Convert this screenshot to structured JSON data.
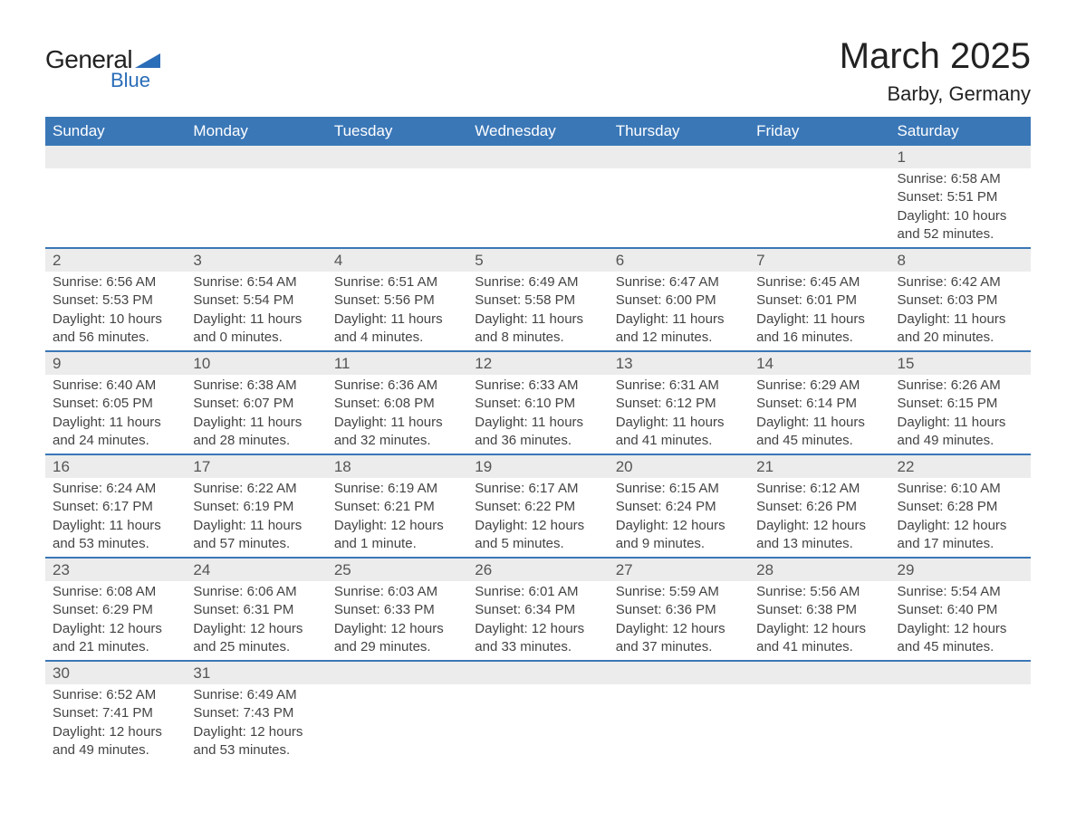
{
  "brand": {
    "name1": "General",
    "name2": "Blue",
    "triangle_color": "#2a6db8"
  },
  "title": "March 2025",
  "location": "Barby, Germany",
  "colors": {
    "header_bg": "#3a77b7",
    "header_text": "#ffffff",
    "daynum_bg": "#ececec",
    "row_divider": "#3a77b7",
    "body_text": "#444444",
    "page_bg": "#ffffff"
  },
  "typography": {
    "title_fontsize": 40,
    "location_fontsize": 22,
    "header_fontsize": 17,
    "daynum_fontsize": 17,
    "detail_fontsize": 15,
    "font_family": "Arial"
  },
  "layout": {
    "columns": 7,
    "weeks": 6,
    "start_day_index": 6
  },
  "days_of_week": [
    "Sunday",
    "Monday",
    "Tuesday",
    "Wednesday",
    "Thursday",
    "Friday",
    "Saturday"
  ],
  "weeks": [
    [
      null,
      null,
      null,
      null,
      null,
      null,
      {
        "n": "1",
        "sr": "Sunrise: 6:58 AM",
        "ss": "Sunset: 5:51 PM",
        "dl": "Daylight: 10 hours and 52 minutes."
      }
    ],
    [
      {
        "n": "2",
        "sr": "Sunrise: 6:56 AM",
        "ss": "Sunset: 5:53 PM",
        "dl": "Daylight: 10 hours and 56 minutes."
      },
      {
        "n": "3",
        "sr": "Sunrise: 6:54 AM",
        "ss": "Sunset: 5:54 PM",
        "dl": "Daylight: 11 hours and 0 minutes."
      },
      {
        "n": "4",
        "sr": "Sunrise: 6:51 AM",
        "ss": "Sunset: 5:56 PM",
        "dl": "Daylight: 11 hours and 4 minutes."
      },
      {
        "n": "5",
        "sr": "Sunrise: 6:49 AM",
        "ss": "Sunset: 5:58 PM",
        "dl": "Daylight: 11 hours and 8 minutes."
      },
      {
        "n": "6",
        "sr": "Sunrise: 6:47 AM",
        "ss": "Sunset: 6:00 PM",
        "dl": "Daylight: 11 hours and 12 minutes."
      },
      {
        "n": "7",
        "sr": "Sunrise: 6:45 AM",
        "ss": "Sunset: 6:01 PM",
        "dl": "Daylight: 11 hours and 16 minutes."
      },
      {
        "n": "8",
        "sr": "Sunrise: 6:42 AM",
        "ss": "Sunset: 6:03 PM",
        "dl": "Daylight: 11 hours and 20 minutes."
      }
    ],
    [
      {
        "n": "9",
        "sr": "Sunrise: 6:40 AM",
        "ss": "Sunset: 6:05 PM",
        "dl": "Daylight: 11 hours and 24 minutes."
      },
      {
        "n": "10",
        "sr": "Sunrise: 6:38 AM",
        "ss": "Sunset: 6:07 PM",
        "dl": "Daylight: 11 hours and 28 minutes."
      },
      {
        "n": "11",
        "sr": "Sunrise: 6:36 AM",
        "ss": "Sunset: 6:08 PM",
        "dl": "Daylight: 11 hours and 32 minutes."
      },
      {
        "n": "12",
        "sr": "Sunrise: 6:33 AM",
        "ss": "Sunset: 6:10 PM",
        "dl": "Daylight: 11 hours and 36 minutes."
      },
      {
        "n": "13",
        "sr": "Sunrise: 6:31 AM",
        "ss": "Sunset: 6:12 PM",
        "dl": "Daylight: 11 hours and 41 minutes."
      },
      {
        "n": "14",
        "sr": "Sunrise: 6:29 AM",
        "ss": "Sunset: 6:14 PM",
        "dl": "Daylight: 11 hours and 45 minutes."
      },
      {
        "n": "15",
        "sr": "Sunrise: 6:26 AM",
        "ss": "Sunset: 6:15 PM",
        "dl": "Daylight: 11 hours and 49 minutes."
      }
    ],
    [
      {
        "n": "16",
        "sr": "Sunrise: 6:24 AM",
        "ss": "Sunset: 6:17 PM",
        "dl": "Daylight: 11 hours and 53 minutes."
      },
      {
        "n": "17",
        "sr": "Sunrise: 6:22 AM",
        "ss": "Sunset: 6:19 PM",
        "dl": "Daylight: 11 hours and 57 minutes."
      },
      {
        "n": "18",
        "sr": "Sunrise: 6:19 AM",
        "ss": "Sunset: 6:21 PM",
        "dl": "Daylight: 12 hours and 1 minute."
      },
      {
        "n": "19",
        "sr": "Sunrise: 6:17 AM",
        "ss": "Sunset: 6:22 PM",
        "dl": "Daylight: 12 hours and 5 minutes."
      },
      {
        "n": "20",
        "sr": "Sunrise: 6:15 AM",
        "ss": "Sunset: 6:24 PM",
        "dl": "Daylight: 12 hours and 9 minutes."
      },
      {
        "n": "21",
        "sr": "Sunrise: 6:12 AM",
        "ss": "Sunset: 6:26 PM",
        "dl": "Daylight: 12 hours and 13 minutes."
      },
      {
        "n": "22",
        "sr": "Sunrise: 6:10 AM",
        "ss": "Sunset: 6:28 PM",
        "dl": "Daylight: 12 hours and 17 minutes."
      }
    ],
    [
      {
        "n": "23",
        "sr": "Sunrise: 6:08 AM",
        "ss": "Sunset: 6:29 PM",
        "dl": "Daylight: 12 hours and 21 minutes."
      },
      {
        "n": "24",
        "sr": "Sunrise: 6:06 AM",
        "ss": "Sunset: 6:31 PM",
        "dl": "Daylight: 12 hours and 25 minutes."
      },
      {
        "n": "25",
        "sr": "Sunrise: 6:03 AM",
        "ss": "Sunset: 6:33 PM",
        "dl": "Daylight: 12 hours and 29 minutes."
      },
      {
        "n": "26",
        "sr": "Sunrise: 6:01 AM",
        "ss": "Sunset: 6:34 PM",
        "dl": "Daylight: 12 hours and 33 minutes."
      },
      {
        "n": "27",
        "sr": "Sunrise: 5:59 AM",
        "ss": "Sunset: 6:36 PM",
        "dl": "Daylight: 12 hours and 37 minutes."
      },
      {
        "n": "28",
        "sr": "Sunrise: 5:56 AM",
        "ss": "Sunset: 6:38 PM",
        "dl": "Daylight: 12 hours and 41 minutes."
      },
      {
        "n": "29",
        "sr": "Sunrise: 5:54 AM",
        "ss": "Sunset: 6:40 PM",
        "dl": "Daylight: 12 hours and 45 minutes."
      }
    ],
    [
      {
        "n": "30",
        "sr": "Sunrise: 6:52 AM",
        "ss": "Sunset: 7:41 PM",
        "dl": "Daylight: 12 hours and 49 minutes."
      },
      {
        "n": "31",
        "sr": "Sunrise: 6:49 AM",
        "ss": "Sunset: 7:43 PM",
        "dl": "Daylight: 12 hours and 53 minutes."
      },
      null,
      null,
      null,
      null,
      null
    ]
  ]
}
